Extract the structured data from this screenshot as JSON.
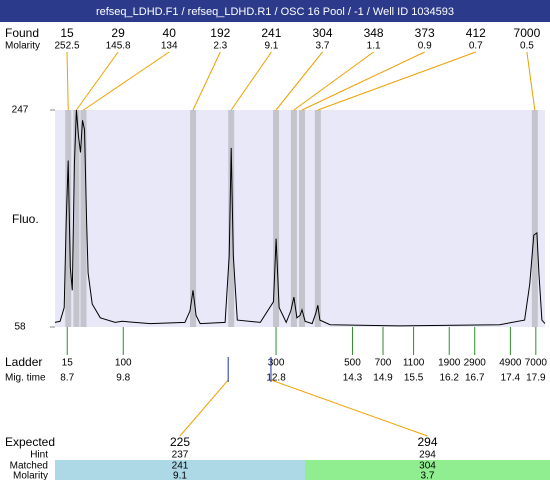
{
  "chart_data": {
    "type": "electropherogram",
    "title": "refseq_LDHD.F1 / refseq_LDHD.R1 / OSC 16 Pool / -1 / Well ID 1034593",
    "ylabel": "Fluo.",
    "ylim": [
      58,
      247
    ],
    "yticks": [
      58,
      247
    ],
    "xlim": [
      8.46,
      18.08
    ],
    "trace_color": "#000000",
    "found": {
      "label": "Found",
      "molarity_label": "Molarity",
      "sizes": [
        15,
        29,
        40,
        192,
        241,
        304,
        348,
        373,
        412,
        7000
      ],
      "molarity": [
        252.5,
        145.8,
        134,
        2.3,
        9.1,
        3.7,
        1.1,
        0.9,
        0.7,
        0.5
      ],
      "migration_time": [
        8.72,
        8.88,
        9.02,
        11.17,
        11.92,
        12.8,
        13.15,
        13.31,
        13.62,
        17.88
      ],
      "color": "#f0a000"
    },
    "ladder": {
      "label": "Ladder",
      "time_label": "Mig. time",
      "sizes": [
        15,
        100,
        300,
        500,
        700,
        1100,
        1900,
        2900,
        4900,
        7000
      ],
      "migration_time": [
        8.7,
        9.8,
        12.8,
        14.3,
        14.9,
        15.5,
        16.2,
        16.7,
        17.4,
        17.9
      ],
      "color": "#2e8b2e"
    },
    "expected": {
      "label": "Expected",
      "hint_label": "Hint",
      "matched_label": "Matched",
      "molarity_label": "Molarity",
      "sizes": [
        225,
        294
      ],
      "hint": [
        237,
        294
      ],
      "matched": [
        241,
        304
      ],
      "molarity": [
        9.1,
        3.7
      ],
      "migration_time": [
        11.86,
        12.7
      ],
      "colors": [
        "#add8e6",
        "#90ee90"
      ]
    },
    "trace": {
      "x": [
        8.46,
        8.56,
        8.64,
        8.68,
        8.72,
        8.76,
        8.8,
        8.84,
        8.88,
        8.92,
        8.96,
        9.0,
        9.04,
        9.08,
        9.11,
        9.19,
        9.35,
        9.64,
        9.78,
        10.33,
        11.01,
        11.11,
        11.17,
        11.23,
        11.31,
        11.8,
        11.88,
        11.92,
        11.96,
        12.04,
        12.49,
        12.75,
        12.8,
        12.86,
        13.0,
        13.09,
        13.15,
        13.21,
        13.27,
        13.31,
        13.37,
        13.51,
        13.58,
        13.62,
        13.66,
        13.86,
        15.23,
        17.19,
        17.68,
        17.78,
        17.86,
        17.92,
        17.96,
        18.02,
        18.08
      ],
      "values": [
        62,
        63,
        75,
        150,
        203,
        110,
        90,
        200,
        247,
        225,
        210,
        238,
        230,
        150,
        105,
        78,
        66,
        62,
        63,
        61,
        62,
        72,
        90,
        68,
        61,
        62,
        120,
        214,
        120,
        64,
        62,
        80,
        135,
        75,
        62,
        72,
        84,
        66,
        68,
        73,
        63,
        61,
        70,
        77,
        64,
        60,
        59,
        60,
        64,
        95,
        138,
        140,
        105,
        64,
        61
      ]
    }
  }
}
